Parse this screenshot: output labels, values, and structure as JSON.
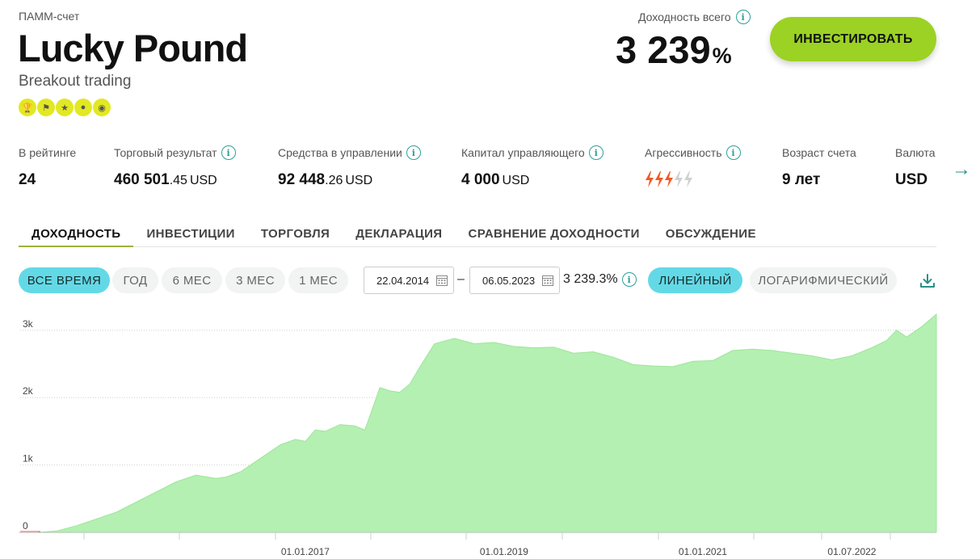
{
  "header": {
    "type_label": "ПАММ-счет",
    "title": "Lucky Pound",
    "subtitle": "Breakout trading",
    "badges": [
      "trophy-icon",
      "runner-icon",
      "star-icon",
      "chat-icon",
      "chat-icon"
    ],
    "total_return_label": "Доходность всего",
    "total_return_value": "3 239",
    "total_return_unit": "%",
    "invest_label": "ИНВЕСТИРОВАТЬ"
  },
  "stats": {
    "rating": {
      "label": "В рейтинге",
      "value": "24"
    },
    "trading_result": {
      "label": "Торговый результат",
      "int": "460 501",
      "frac": ".45",
      "currency": "USD"
    },
    "funds": {
      "label": "Средства в управлении",
      "int": "92 448",
      "frac": ".26",
      "currency": "USD"
    },
    "manager_capital": {
      "label": "Капитал управляющего",
      "int": "4 000",
      "currency": "USD"
    },
    "aggressiveness": {
      "label": "Агрессивность",
      "level": 3,
      "max": 5,
      "active_color": "#f05a28",
      "inactive_color": "#d0d0d0"
    },
    "age": {
      "label": "Возраст счета",
      "value": "9 лет"
    },
    "currency": {
      "label": "Валюта",
      "value": "USD"
    }
  },
  "tabs": [
    "ДОХОДНОСТЬ",
    "ИНВЕСТИЦИИ",
    "ТОРГОВЛЯ",
    "ДЕКЛАРАЦИЯ",
    "СРАВНЕНИЕ ДОХОДНОСТИ",
    "ОБСУЖДЕНИЕ"
  ],
  "periods": [
    "ВСЕ ВРЕМЯ",
    "ГОД",
    "6 МЕС",
    "3 МЕС",
    "1 МЕС"
  ],
  "date_from": "22.04.2014",
  "date_to": "06.05.2023",
  "date_separator": "–",
  "period_return": "3 239.3%",
  "scales": [
    "ЛИНЕЙНЫЙ",
    "ЛОГАРИФМИЧЕСКИЙ"
  ],
  "colors": {
    "accent_green": "#9bd223",
    "teal": "#63d9e6",
    "area_fill": "#b3f0b1",
    "area_line": "#9ee59b"
  },
  "chart_data": {
    "type": "area",
    "y_ticks": [
      "0",
      "1k",
      "2k",
      "3k"
    ],
    "x_ticks": [
      "01.01.2017",
      "01.01.2019",
      "01.01.2021",
      "01.07.2022"
    ],
    "ylim": [
      0,
      3250
    ],
    "xlim": [
      2014.31,
      2023.35
    ],
    "grid": true,
    "series": [
      {
        "x": [
          2014.31,
          2014.5,
          2014.7,
          2014.9,
          2015.1,
          2015.3,
          2015.5,
          2015.7,
          2015.9,
          2016.1,
          2016.2,
          2016.35,
          2016.5,
          2016.6,
          2016.75,
          2016.9,
          2017.0,
          2017.1,
          2017.2,
          2017.35,
          2017.5,
          2017.6,
          2017.75,
          2017.85,
          2017.95,
          2018.05,
          2018.15,
          2018.3,
          2018.5,
          2018.7,
          2018.9,
          2019.1,
          2019.3,
          2019.5,
          2019.7,
          2019.9,
          2020.1,
          2020.3,
          2020.5,
          2020.7,
          2020.9,
          2021.1,
          2021.3,
          2021.5,
          2021.7,
          2021.9,
          2022.1,
          2022.3,
          2022.5,
          2022.7,
          2022.85,
          2022.95,
          2023.05,
          2023.2,
          2023.35
        ],
        "y": [
          0,
          20,
          100,
          200,
          300,
          450,
          600,
          750,
          850,
          800,
          820,
          900,
          1050,
          1150,
          1300,
          1380,
          1350,
          1520,
          1500,
          1600,
          1580,
          1520,
          2150,
          2100,
          2080,
          2200,
          2450,
          2800,
          2880,
          2800,
          2820,
          2760,
          2740,
          2750,
          2660,
          2680,
          2600,
          2490,
          2470,
          2460,
          2540,
          2550,
          2700,
          2720,
          2700,
          2660,
          2620,
          2560,
          2620,
          2740,
          2850,
          3000,
          2900,
          3050,
          3239
        ]
      }
    ]
  }
}
